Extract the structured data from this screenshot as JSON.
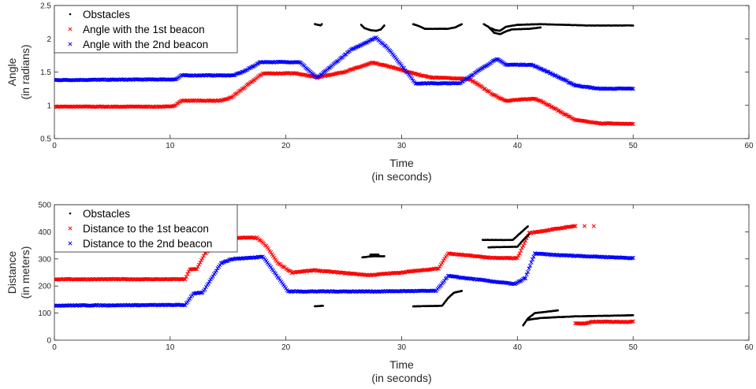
{
  "chart_data": [
    {
      "type": "scatter",
      "xlabel": [
        "Time",
        "(in seconds)"
      ],
      "ylabel": [
        "Angle",
        "(in radians)"
      ],
      "xlim": [
        0,
        60
      ],
      "ylim": [
        0.5,
        2.5
      ],
      "xticks": [
        "0",
        "10",
        "20",
        "30",
        "40",
        "50",
        "60"
      ],
      "yticks": [
        "0.5",
        "1",
        "1.5",
        "2",
        "2.5"
      ],
      "grid": false,
      "legend_position": "top-left",
      "series": [
        {
          "name": "Obstacles",
          "marker": "dot",
          "color": "#000000",
          "segments": [
            [
              [
                22.5,
                2.22
              ],
              [
                22.8,
                2.21
              ],
              [
                23.0,
                2.2
              ],
              [
                23.1,
                2.22
              ]
            ],
            [
              [
                26.5,
                2.21
              ],
              [
                26.8,
                2.16
              ],
              [
                27.3,
                2.13
              ],
              [
                27.8,
                2.12
              ],
              [
                28.2,
                2.14
              ],
              [
                28.5,
                2.2
              ]
            ],
            [
              [
                31.0,
                2.22
              ],
              [
                31.5,
                2.19
              ],
              [
                32.0,
                2.15
              ],
              [
                33.0,
                2.15
              ],
              [
                34.0,
                2.15
              ],
              [
                34.6,
                2.17
              ],
              [
                35.2,
                2.22
              ]
            ],
            [
              [
                37.1,
                2.22
              ],
              [
                37.5,
                2.18
              ],
              [
                38.0,
                2.09
              ],
              [
                38.5,
                2.07
              ],
              [
                39.0,
                2.11
              ],
              [
                39.5,
                2.14
              ],
              [
                41.0,
                2.15
              ],
              [
                42.0,
                2.17
              ]
            ],
            [
              [
                37.7,
                2.16
              ],
              [
                38.1,
                2.13
              ],
              [
                38.5,
                2.12
              ],
              [
                39.0,
                2.18
              ],
              [
                40.0,
                2.21
              ],
              [
                42.0,
                2.22
              ],
              [
                46.0,
                2.2
              ],
              [
                50.0,
                2.2
              ]
            ]
          ]
        },
        {
          "name": "Angle with the 1st beacon",
          "marker": "x",
          "color": "#ff0000",
          "points": [
            [
              0,
              0.98
            ],
            [
              10,
              0.98
            ],
            [
              10.4,
              1.0
            ],
            [
              11,
              1.07
            ],
            [
              14.5,
              1.07
            ],
            [
              15.3,
              1.12
            ],
            [
              16.5,
              1.28
            ],
            [
              18,
              1.48
            ],
            [
              21,
              1.48
            ],
            [
              22.7,
              1.42
            ],
            [
              25,
              1.5
            ],
            [
              27.5,
              1.64
            ],
            [
              29,
              1.58
            ],
            [
              31,
              1.48
            ],
            [
              32.5,
              1.42
            ],
            [
              35.5,
              1.4
            ],
            [
              36,
              1.38
            ],
            [
              38,
              1.15
            ],
            [
              39,
              1.07
            ],
            [
              41.5,
              1.1
            ],
            [
              42,
              1.07
            ],
            [
              45,
              0.78
            ],
            [
              47,
              0.73
            ],
            [
              50,
              0.72
            ]
          ]
        },
        {
          "name": "Angle with the 2nd beacon",
          "marker": "x",
          "color": "#0000ff",
          "points": [
            [
              0,
              1.38
            ],
            [
              10.5,
              1.39
            ],
            [
              11,
              1.45
            ],
            [
              15.5,
              1.45
            ],
            [
              16.5,
              1.52
            ],
            [
              17.8,
              1.65
            ],
            [
              21.2,
              1.65
            ],
            [
              22.7,
              1.41
            ],
            [
              25.6,
              1.83
            ],
            [
              27.8,
              2.02
            ],
            [
              29,
              1.82
            ],
            [
              31.2,
              1.33
            ],
            [
              35,
              1.33
            ],
            [
              38.2,
              1.7
            ],
            [
              39,
              1.61
            ],
            [
              41.2,
              1.61
            ],
            [
              42.3,
              1.53
            ],
            [
              45,
              1.3
            ],
            [
              47,
              1.25
            ],
            [
              50,
              1.25
            ]
          ]
        }
      ]
    },
    {
      "type": "scatter",
      "xlabel": [
        "Time",
        "(in seconds)"
      ],
      "ylabel": [
        "Distance",
        "(in meters)"
      ],
      "xlim": [
        0,
        60
      ],
      "ylim": [
        0,
        500
      ],
      "xticks": [
        "0",
        "10",
        "20",
        "30",
        "40",
        "50",
        "60"
      ],
      "yticks": [
        "0",
        "100",
        "200",
        "300",
        "400",
        "500"
      ],
      "grid": false,
      "legend_position": "top-left",
      "series": [
        {
          "name": "Obstacles",
          "marker": "dot",
          "color": "#000000",
          "segments": [
            [
              [
                22.5,
                125
              ],
              [
                23.2,
                127
              ]
            ],
            [
              [
                26.6,
                306
              ],
              [
                27.5,
                310
              ],
              [
                28.5,
                310
              ]
            ],
            [
              [
                27.3,
                316
              ],
              [
                28.0,
                316
              ]
            ],
            [
              [
                31.0,
                125
              ],
              [
                33.5,
                127
              ],
              [
                34.0,
                155
              ],
              [
                34.5,
                175
              ],
              [
                35.2,
                182
              ]
            ],
            [
              [
                37.0,
                370
              ],
              [
                39.6,
                370
              ],
              [
                40.5,
                405
              ],
              [
                40.9,
                420
              ]
            ],
            [
              [
                37.5,
                343
              ],
              [
                40.0,
                345
              ],
              [
                40.5,
                370
              ],
              [
                41.0,
                390
              ]
            ],
            [
              [
                40.5,
                55
              ],
              [
                40.9,
                80
              ],
              [
                41.5,
                100
              ],
              [
                43.5,
                110
              ]
            ],
            [
              [
                40.9,
                75
              ],
              [
                42,
                82
              ],
              [
                45,
                88
              ],
              [
                50,
                92
              ]
            ]
          ]
        },
        {
          "name": "Distance to the 1st beacon",
          "marker": "x",
          "color": "#ff0000",
          "points": [
            [
              0,
              225
            ],
            [
              11.3,
              225
            ],
            [
              11.7,
              262
            ],
            [
              12.3,
              262
            ],
            [
              13,
              320
            ],
            [
              14.8,
              378
            ],
            [
              17.5,
              378
            ],
            [
              18.3,
              348
            ],
            [
              19.3,
              285
            ],
            [
              20.5,
              250
            ],
            [
              22.5,
              258
            ],
            [
              24,
              252
            ],
            [
              27.2,
              240
            ],
            [
              30,
              250
            ],
            [
              33.2,
              265
            ],
            [
              34,
              320
            ],
            [
              38,
              303
            ],
            [
              40,
              303
            ],
            [
              41,
              395
            ],
            [
              45.0,
              422
            ]
          ],
          "isolated_points": [
            [
              45.8,
              421
            ],
            [
              46.6,
              421
            ]
          ],
          "segments": [
            [
              [
                45.0,
                62
              ],
              [
                46.0,
                62
              ],
              [
                46.5,
                68
              ],
              [
                50,
                68
              ]
            ]
          ]
        },
        {
          "name": "Distance to the 2nd beacon",
          "marker": "x",
          "color": "#0000ff",
          "points": [
            [
              0,
              128
            ],
            [
              11.3,
              130
            ],
            [
              12,
              172
            ],
            [
              12.8,
              175
            ],
            [
              14.4,
              285
            ],
            [
              15.4,
              300
            ],
            [
              17.3,
              305
            ],
            [
              18,
              310
            ],
            [
              20.2,
              180
            ],
            [
              24,
              180
            ],
            [
              28,
              180
            ],
            [
              30,
              181
            ],
            [
              33,
              182
            ],
            [
              34,
              237
            ],
            [
              39.8,
              207
            ],
            [
              40.7,
              230
            ],
            [
              41.5,
              320
            ],
            [
              43,
              315
            ],
            [
              50,
              303
            ]
          ]
        }
      ]
    }
  ]
}
